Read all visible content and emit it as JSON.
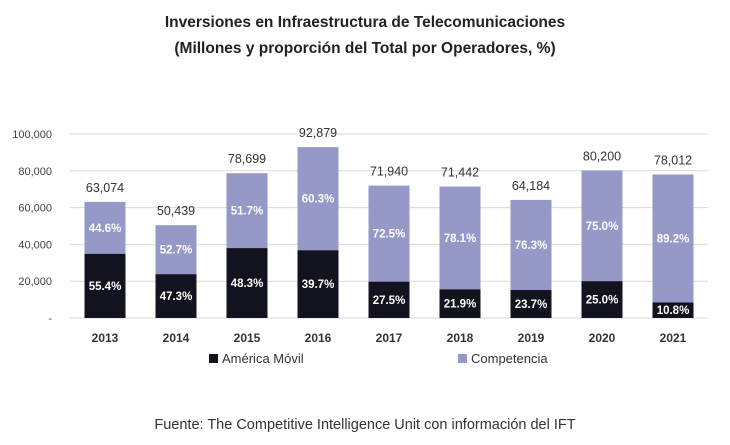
{
  "title_line1": "Inversiones en Infraestructura de Telecomunicaciones",
  "title_line2": "(Millones y proporción del Total por Operadores, %)",
  "source": "Fuente: The Competitive Intelligence Unit con información del IFT",
  "colors": {
    "america_movil": "#13131f",
    "competencia": "#9698c8",
    "grid": "#d9d9d9"
  },
  "chart_data": {
    "type": "bar",
    "stacked": true,
    "categories": [
      "2013",
      "2014",
      "2015",
      "2016",
      "2017",
      "2018",
      "2019",
      "2020",
      "2021"
    ],
    "totals": [
      63074,
      50439,
      78699,
      92879,
      71940,
      71442,
      64184,
      80200,
      78012
    ],
    "total_labels": [
      "63,074",
      "50,439",
      "78,699",
      "92,879",
      "71,940",
      "71,442",
      "64,184",
      "80,200",
      "78,012"
    ],
    "series": [
      {
        "name": "América Móvil",
        "share_pct": [
          55.4,
          47.3,
          48.3,
          39.7,
          27.5,
          21.9,
          23.7,
          25.0,
          10.8
        ],
        "labels": [
          "55.4%",
          "47.3%",
          "48.3%",
          "39.7%",
          "27.5%",
          "21.9%",
          "23.7%",
          "25.0%",
          "10.8%"
        ]
      },
      {
        "name": "Competencia",
        "share_pct": [
          44.6,
          52.7,
          51.7,
          60.3,
          72.5,
          78.1,
          76.3,
          75.0,
          89.2
        ],
        "labels": [
          "44.6%",
          "52.7%",
          "51.7%",
          "60.3%",
          "72.5%",
          "78.1%",
          "76.3%",
          "75.0%",
          "89.2%"
        ]
      }
    ],
    "y_ticks": [
      0,
      20000,
      40000,
      60000,
      80000,
      100000
    ],
    "y_tick_labels": [
      "-",
      "20,000",
      "40,000",
      "60,000",
      "80,000",
      "100,000"
    ],
    "ylim": [
      0,
      100000
    ],
    "grid": true,
    "legend_position": "bottom"
  }
}
